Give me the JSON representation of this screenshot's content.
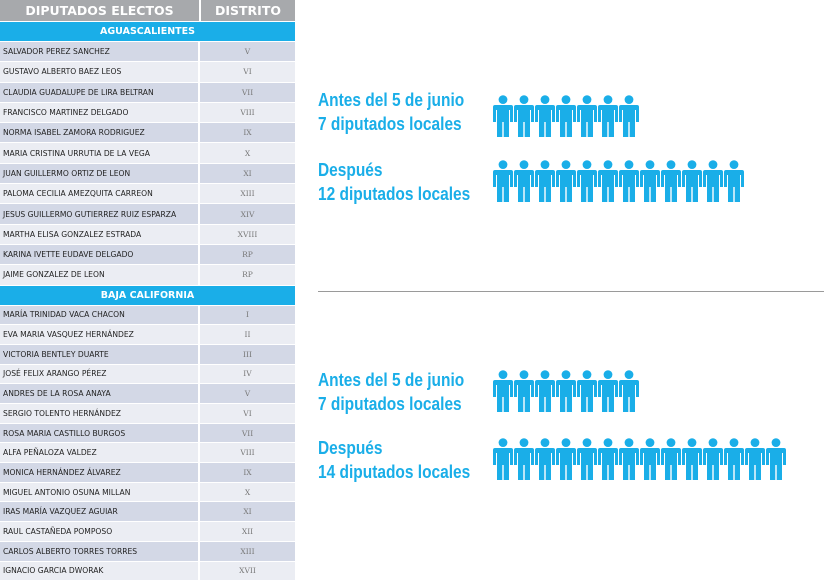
{
  "table": {
    "header": {
      "col1": "DIPUTADOS  ELECTOS",
      "col2": "DISTRITO"
    },
    "sections": [
      {
        "state": "AGUASCALIENTES",
        "rows": [
          {
            "name": "SALVADOR PEREZ SANCHEZ",
            "district": "V"
          },
          {
            "name": "GUSTAVO ALBERTO BAEZ LEOS",
            "district": "VI"
          },
          {
            "name": "CLAUDIA GUADALUPE DE LIRA BELTRAN",
            "district": "VII"
          },
          {
            "name": "FRANCISCO MARTINEZ DELGADO",
            "district": "VIII"
          },
          {
            "name": "NORMA ISABEL ZAMORA RODRIGUEZ",
            "district": "IX"
          },
          {
            "name": "MARIA CRISTINA URRUTIA DE LA VEGA",
            "district": "X"
          },
          {
            "name": "JUAN GUILLERMO ORTIZ DE LEON",
            "district": "XI"
          },
          {
            "name": "PALOMA CECILIA AMEZQUITA CARREON",
            "district": "XIII"
          },
          {
            "name": "JESUS GUILLERMO GUTIERREZ RUIZ ESPARZA",
            "district": "XIV"
          },
          {
            "name": "MARTHA ELISA GONZALEZ ESTRADA",
            "district": "XVIII"
          },
          {
            "name": "KARINA IVETTE EUDAVE DELGADO",
            "district": "RP"
          },
          {
            "name": "JAIME GONZALEZ DE LEON",
            "district": "RP"
          }
        ]
      },
      {
        "state": "BAJA CALIFORNIA",
        "rows": [
          {
            "name": "MARÍA TRINIDAD VACA CHACON",
            "district": "I"
          },
          {
            "name": "EVA MARIA VASQUEZ HERNÁNDEZ",
            "district": "II"
          },
          {
            "name": "VICTORIA BENTLEY DUARTE",
            "district": "III"
          },
          {
            "name": "JOSÉ FELIX ARANGO PÉREZ",
            "district": "IV"
          },
          {
            "name": "ANDRES DE LA ROSA ANAYA",
            "district": "V"
          },
          {
            "name": "SERGIO TOLENTO HERNÁNDEZ",
            "district": "VI"
          },
          {
            "name": "ROSA MARIA CASTILLO BURGOS",
            "district": "VII"
          },
          {
            "name": "ALFA PEÑALOZA VALDEZ",
            "district": "VIII"
          },
          {
            "name": "MONICA HERNÁNDEZ ÁLVAREZ",
            "district": "IX"
          },
          {
            "name": "MIGUEL ANTONIO OSUNA MILLAN",
            "district": "X"
          },
          {
            "name": "IRAS MARÍA VAZQUEZ AGUIAR",
            "district": "XI"
          },
          {
            "name": "RAUL CASTAÑEDA POMPOSO",
            "district": "XII"
          },
          {
            "name": "CARLOS ALBERTO TORRES TORRES",
            "district": "XIII"
          },
          {
            "name": "IGNACIO GARCIA DWORAK",
            "district": "XVII"
          }
        ]
      }
    ]
  },
  "infographic": [
    {
      "line1": "Antes del 5 de junio",
      "line2": "7 diputados locales",
      "count": 7
    },
    {
      "line1": "Después",
      "line2": "12 diputados locales",
      "count": 12
    },
    {
      "line1": "Antes del 5 de junio",
      "line2": "7 diputados locales",
      "count": 7
    },
    {
      "line1": "Después",
      "line2": "14 diputados locales",
      "count": 14
    }
  ],
  "colors": {
    "accent": "#1aaee8",
    "header": "#a7a9ac",
    "row_dark": "#d3d8e6",
    "row_light": "#ebedf3"
  },
  "icon": "person-icon"
}
